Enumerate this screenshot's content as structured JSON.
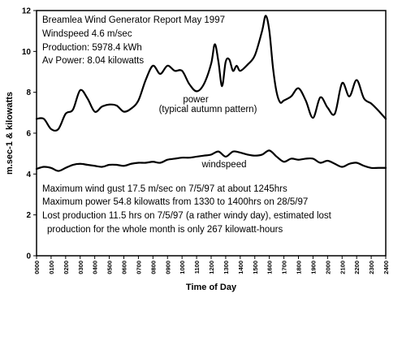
{
  "chart_data": {
    "type": "line",
    "xlabel": "Time of Day",
    "ylabel": "m.sec-1 & kilowatts",
    "ylim": [
      0,
      12
    ],
    "yticks": [
      0,
      2,
      4,
      6,
      8,
      10,
      12
    ],
    "grid": false,
    "categories": [
      "0000",
      "0100",
      "0200",
      "0300",
      "0400",
      "0500",
      "0600",
      "0700",
      "0800",
      "0900",
      "1000",
      "1100",
      "1200",
      "1300",
      "1400",
      "1500",
      "1600",
      "1700",
      "1800",
      "1900",
      "2000",
      "2100",
      "2200",
      "2300",
      "2400"
    ],
    "annotations": {
      "report_title": "Breamlea Wind Generator Report  May 1997",
      "windspeed": "Windspeed 4.6 m/sec",
      "production": "Production: 5978.4 kWh",
      "av_power": "Av Power: 8.04 kilowatts",
      "power_label": "power",
      "power_sublabel": "(typical autumn pattern)",
      "windspeed_label": "windspeed",
      "max_gust": "Maximum wind gust 17.5 m/sec on 7/5/97 at about 1245hrs",
      "max_power": "Maximum power 54.8 kilowatts from 1330 to 1400hrs on 28/5/97",
      "lost_production_1": "Lost production 11.5 hrs on 7/5/97 (a rather windy day), estimated lost",
      "lost_production_2": "production for the whole month is only 267 kilowatt-hours"
    },
    "series": [
      {
        "name": "power",
        "x": [
          0,
          0.5,
          1,
          1.5,
          2,
          2.5,
          3,
          3.5,
          4,
          4.5,
          5,
          5.5,
          6,
          6.5,
          7,
          7.5,
          8,
          8.5,
          9,
          9.5,
          10,
          10.5,
          11,
          11.5,
          12,
          12.25,
          12.5,
          12.75,
          13,
          13.25,
          13.5,
          13.75,
          14,
          14.5,
          15,
          15.5,
          15.75,
          16,
          16.25,
          16.5,
          16.75,
          17,
          17.5,
          18,
          18.5,
          19,
          19.5,
          20,
          20.5,
          21,
          21.5,
          22,
          22.5,
          23,
          23.5,
          24
        ],
        "values": [
          6.7,
          6.7,
          6.2,
          6.2,
          6.95,
          7.15,
          8.1,
          7.7,
          7.05,
          7.3,
          7.4,
          7.35,
          7.05,
          7.2,
          7.6,
          8.6,
          9.3,
          8.9,
          9.3,
          9.05,
          9.05,
          8.4,
          8.05,
          8.4,
          9.4,
          10.35,
          9.5,
          8.3,
          9.5,
          9.6,
          9.05,
          9.3,
          9.05,
          9.35,
          9.8,
          11.0,
          11.75,
          11.0,
          9.2,
          8.0,
          7.5,
          7.6,
          7.8,
          8.2,
          7.6,
          6.75,
          7.75,
          7.25,
          6.95,
          8.45,
          7.8,
          8.6,
          7.7,
          7.45,
          7.1,
          6.7
        ]
      },
      {
        "name": "windspeed",
        "x": [
          0,
          0.5,
          1,
          1.5,
          2,
          2.5,
          3,
          3.5,
          4,
          4.5,
          5,
          5.5,
          6,
          6.5,
          7,
          7.5,
          8,
          8.5,
          9,
          9.5,
          10,
          10.5,
          11,
          11.5,
          12,
          12.5,
          13,
          13.5,
          14,
          14.5,
          15,
          15.5,
          16,
          16.5,
          17,
          17.5,
          18,
          18.5,
          19,
          19.5,
          20,
          20.5,
          21,
          21.5,
          22,
          22.5,
          23,
          23.5,
          24
        ],
        "values": [
          4.25,
          4.35,
          4.3,
          4.15,
          4.3,
          4.45,
          4.5,
          4.45,
          4.4,
          4.35,
          4.45,
          4.45,
          4.4,
          4.5,
          4.55,
          4.55,
          4.6,
          4.55,
          4.7,
          4.75,
          4.8,
          4.8,
          4.85,
          4.9,
          4.95,
          5.1,
          4.85,
          5.1,
          5.05,
          4.95,
          4.9,
          4.95,
          5.15,
          4.85,
          4.6,
          4.75,
          4.7,
          4.75,
          4.75,
          4.55,
          4.65,
          4.5,
          4.35,
          4.5,
          4.55,
          4.4,
          4.3,
          4.3,
          4.3
        ]
      }
    ]
  }
}
